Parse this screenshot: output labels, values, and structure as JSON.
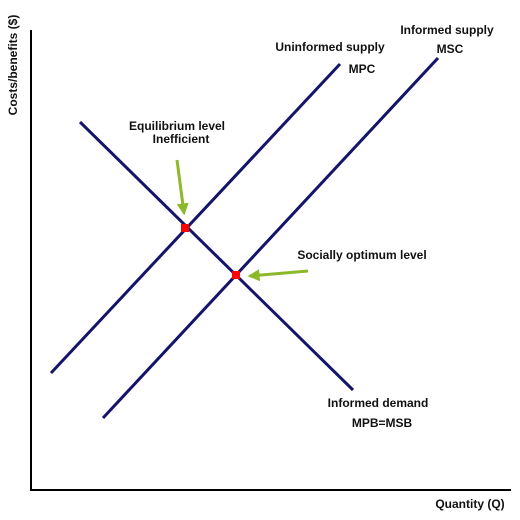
{
  "axes": {
    "y_label": "Costs/benefits ($)",
    "x_label": "Quantity (Q)"
  },
  "curves": [
    {
      "label": "Uninformed supply",
      "sublabel": "MPC"
    },
    {
      "label": "Informed supply",
      "sublabel": "MSC"
    },
    {
      "label": "Informed demand",
      "sublabel": "MPB=MSB"
    }
  ],
  "annotations": [
    {
      "label": "Equilibrium level",
      "sublabel": "Inefficient"
    },
    {
      "label": "Socially optimum level"
    }
  ]
}
